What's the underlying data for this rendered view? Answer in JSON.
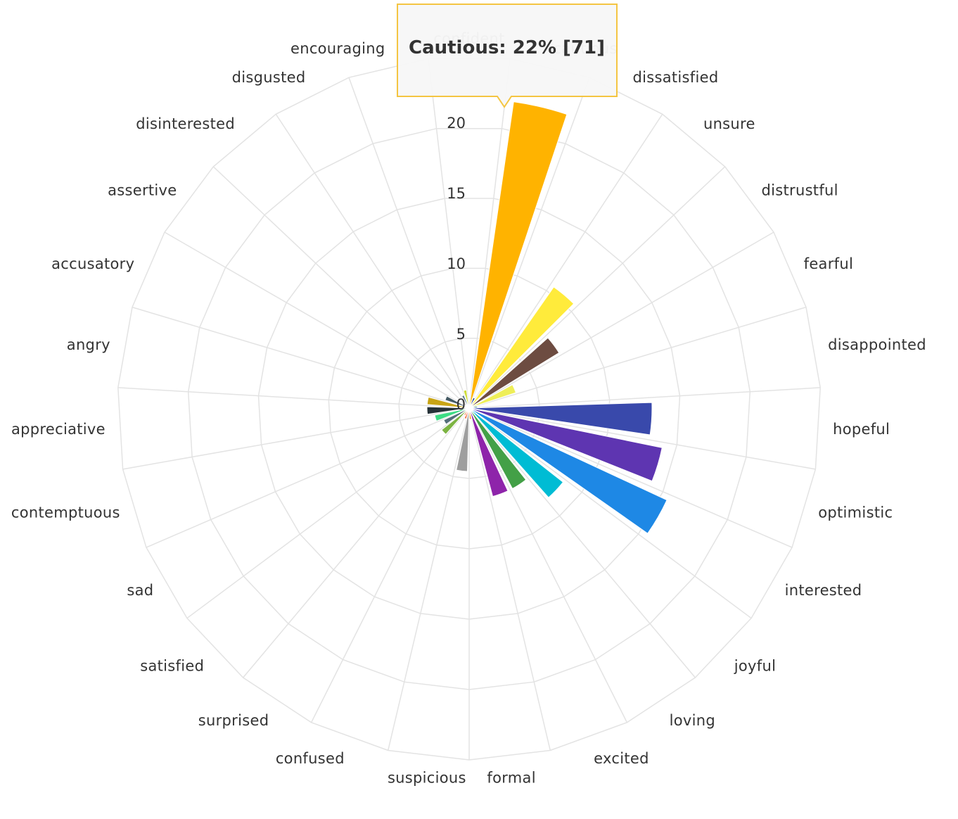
{
  "chart_data": {
    "type": "polar-bar",
    "categories": [
      "confident",
      "cautious",
      "dissatisfied",
      "unsure",
      "distrustful",
      "fearful",
      "disappointed",
      "hopeful",
      "optimistic",
      "interested",
      "joyful",
      "loving",
      "excited",
      "formal",
      "suspicious",
      "confused",
      "surprised",
      "satisfied",
      "sad",
      "contemptuous",
      "appreciative",
      "angry",
      "accusatory",
      "assertive",
      "disinterested",
      "disgusted",
      "encouraging"
    ],
    "values": [
      0.1,
      22,
      0.8,
      10.5,
      7.5,
      3.5,
      0.6,
      13,
      14,
      15.5,
      8.5,
      6.5,
      6.5,
      0.8,
      4.5,
      0.8,
      0.6,
      2.5,
      2.0,
      2.5,
      3.0,
      3.0,
      1.8,
      0.3,
      0.3,
      1.0,
      1.3
    ],
    "colors": [
      "#4caf50",
      "#ffb300",
      "#1a3a8f",
      "#ffeb3b",
      "#6d4c41",
      "#eeee58",
      "#00695c",
      "#3949ab",
      "#5e35b1",
      "#1e88e5",
      "#00bcd4",
      "#43a047",
      "#8e24aa",
      "#ff9800",
      "#9e9e9e",
      "#f4511e",
      "#ff5722",
      "#7cb342",
      "#546e7a",
      "#3ddc84",
      "#263238",
      "#c8a415",
      "#455a64",
      "#2f6f6f",
      "#e91e63",
      "#607d8b",
      "#cddc39"
    ],
    "radial_ticks": [
      0,
      5,
      10,
      15,
      20
    ],
    "radial_max": 25,
    "grid": true,
    "tooltip": {
      "text": "Cautious: 22% [71]",
      "border_color": "#f4c542"
    }
  }
}
